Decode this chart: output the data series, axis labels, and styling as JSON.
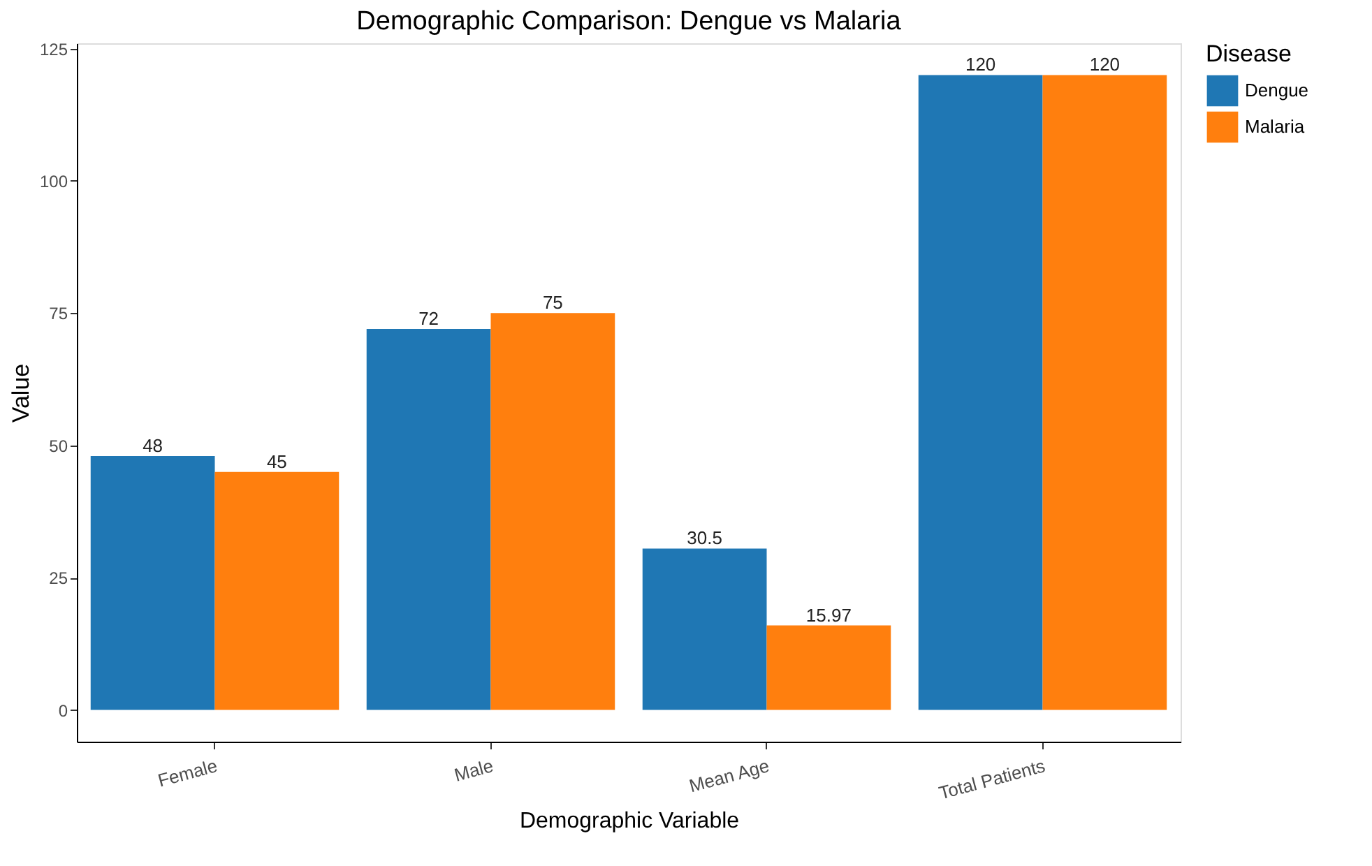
{
  "chart_data": {
    "type": "bar",
    "title": "Demographic Comparison: Dengue vs Malaria",
    "xlabel": "Demographic Variable",
    "ylabel": "Value",
    "legend_title": "Disease",
    "categories": [
      "Female",
      "Male",
      "Mean Age",
      "Total Patients"
    ],
    "series": [
      {
        "name": "Dengue",
        "color": "#1f77b4",
        "values": [
          48,
          72,
          30.5,
          120
        ]
      },
      {
        "name": "Malaria",
        "color": "#ff7f0e",
        "values": [
          45,
          75,
          15.97,
          120
        ]
      }
    ],
    "ylim": [
      -6,
      126
    ],
    "yticks": [
      0,
      25,
      50,
      75,
      100,
      125
    ],
    "grid": false,
    "legend": "right",
    "data_labels": true
  }
}
